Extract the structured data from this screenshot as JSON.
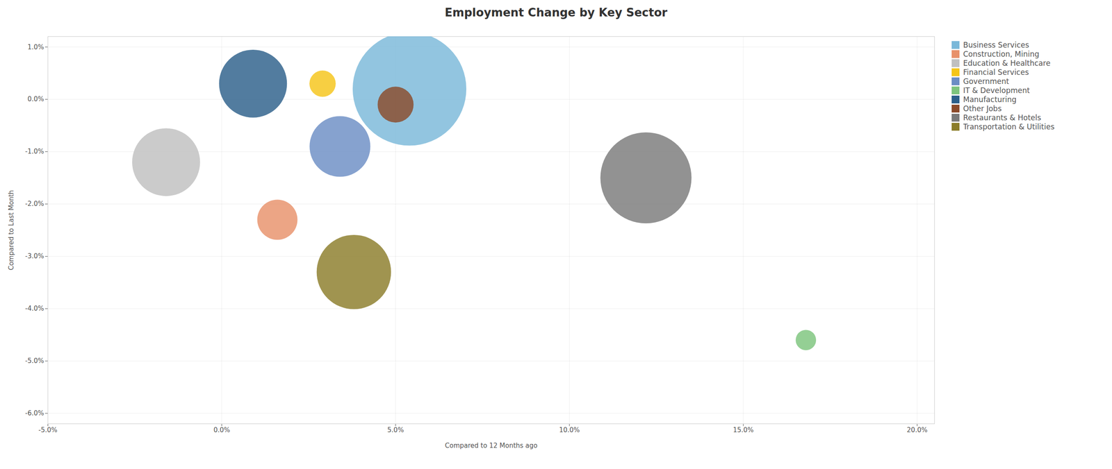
{
  "chart_data": {
    "type": "scatter",
    "title": "Employment Change by Key Sector",
    "xlabel": "Compared to 12 Months ago",
    "ylabel": "Compared to Last Month",
    "xlim": [
      -0.05,
      0.205
    ],
    "ylim": [
      -0.062,
      0.012
    ],
    "xticks": [
      {
        "value": -0.05,
        "label": "-5.0%"
      },
      {
        "value": 0.0,
        "label": "0.0%"
      },
      {
        "value": 0.05,
        "label": "5.0%"
      },
      {
        "value": 0.1,
        "label": "10.0%"
      },
      {
        "value": 0.15,
        "label": "15.0%"
      },
      {
        "value": 0.2,
        "label": "20.0%"
      }
    ],
    "yticks": [
      {
        "value": -0.06,
        "label": "-6.0%"
      },
      {
        "value": -0.05,
        "label": "-5.0%"
      },
      {
        "value": -0.04,
        "label": "-4.0%"
      },
      {
        "value": -0.03,
        "label": "-3.0%"
      },
      {
        "value": -0.02,
        "label": "-2.0%"
      },
      {
        "value": -0.01,
        "label": "-1.0%"
      },
      {
        "value": 0.0,
        "label": "0.0%"
      },
      {
        "value": 0.01,
        "label": "1.0%"
      }
    ],
    "grid": true,
    "legend": "right",
    "series": [
      {
        "name": "Business Services",
        "color": "#7ab8d9",
        "x": [
          0.054
        ],
        "y": [
          0.002
        ],
        "size": [
          28000
        ]
      },
      {
        "name": "Construction, Mining",
        "color": "#e8916a",
        "x": [
          0.016
        ],
        "y": [
          -0.023
        ],
        "size": [
          3500
        ]
      },
      {
        "name": "Education & Healthcare",
        "color": "#c0c0c0",
        "x": [
          -0.016
        ],
        "y": [
          -0.012
        ],
        "size": [
          10000
        ]
      },
      {
        "name": "Financial Services",
        "color": "#f5c518",
        "x": [
          0.029
        ],
        "y": [
          0.003
        ],
        "size": [
          1500
        ]
      },
      {
        "name": "Government",
        "color": "#6b8dc4",
        "x": [
          0.034
        ],
        "y": [
          -0.009
        ],
        "size": [
          8000
        ]
      },
      {
        "name": "IT & Development",
        "color": "#7dc47d",
        "x": [
          0.168
        ],
        "y": [
          -0.046
        ],
        "size": [
          900
        ]
      },
      {
        "name": "Manufacturing",
        "color": "#2c5f8a",
        "x": [
          0.009
        ],
        "y": [
          0.003
        ],
        "size": [
          10000
        ]
      },
      {
        "name": "Other Jobs",
        "color": "#8b4a2a",
        "x": [
          0.05
        ],
        "y": [
          -0.001
        ],
        "size": [
          2800
        ]
      },
      {
        "name": "Restaurants & Hotels",
        "color": "#7a7a7a",
        "x": [
          0.122
        ],
        "y": [
          -0.015
        ],
        "size": [
          18000
        ]
      },
      {
        "name": "Transportation & Utilities",
        "color": "#8b7d2a",
        "x": [
          0.038
        ],
        "y": [
          -0.033
        ],
        "size": [
          12000
        ]
      }
    ]
  }
}
